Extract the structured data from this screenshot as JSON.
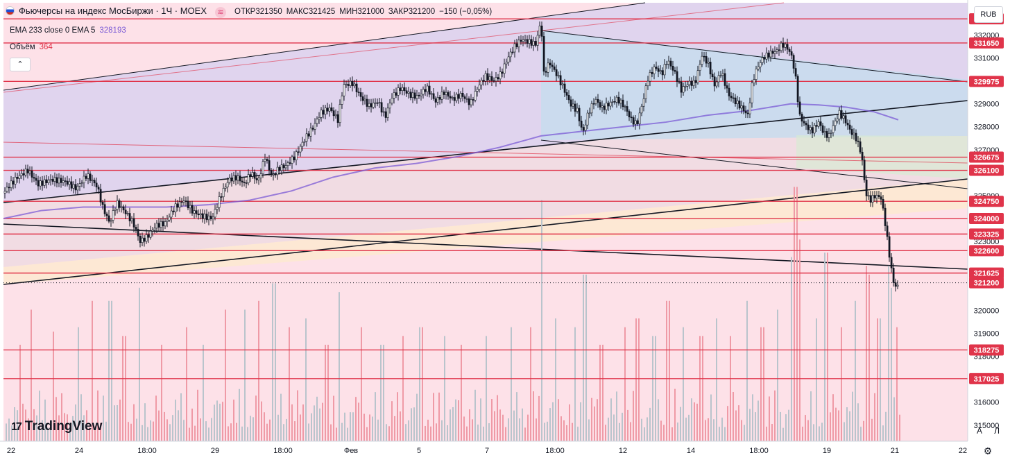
{
  "header": {
    "symbol": "Фьючерсы на индекс МосБиржи · 1Ч · MOEX",
    "indicator_glyph": "≋",
    "ohlc": [
      {
        "label": "ОТКР",
        "value": "321350"
      },
      {
        "label": "МАКС",
        "value": "321425"
      },
      {
        "label": "МИН",
        "value": "321000"
      },
      {
        "label": "ЗАКР",
        "value": "321200"
      }
    ],
    "change": "−150 (−0,05%)"
  },
  "indicators": [
    {
      "label": "EMA 233 close 0 EMA 5",
      "value": "328193"
    },
    {
      "label": "Объём",
      "value": "364"
    }
  ],
  "currency": "RUB",
  "brand": "TradingView",
  "brand_mark": "17",
  "scale_buttons": {
    "auto": "A",
    "log": "Л"
  },
  "colors": {
    "up": "#26a69a",
    "candle": "#131722",
    "hline": "#e0344a",
    "ema": "#7b5bd6",
    "vol_up": "#b9c4cc",
    "vol_down": "#ef9aa6",
    "bg_pink": "#fde1e8",
    "bg_purple": "#ddd3ee"
  },
  "chart_data": {
    "type": "candlestick",
    "y_axis_ticks": [
      332000,
      331000,
      329000,
      328000,
      327000,
      325000,
      323000,
      320000,
      319000,
      318000,
      316000,
      315000
    ],
    "ylim": [
      314300,
      333400
    ],
    "x_axis_ticks": [
      "22",
      "24",
      "18:00",
      "29",
      "18:00",
      "Фев",
      "5",
      "7",
      "18:00",
      "12",
      "14",
      "18:00",
      "19",
      "21",
      "22"
    ],
    "price_levels": [
      {
        "label": "332700",
        "value": 332700
      },
      {
        "label": "331650",
        "value": 331650
      },
      {
        "label": "329975",
        "value": 329975
      },
      {
        "label": "326675",
        "value": 326675
      },
      {
        "label": "326100",
        "value": 326100
      },
      {
        "label": "324750",
        "value": 324750
      },
      {
        "label": "324000",
        "value": 324000
      },
      {
        "label": "323325",
        "value": 323325
      },
      {
        "label": "322600",
        "value": 322600
      },
      {
        "label": "321625",
        "value": 321625
      },
      {
        "label": "321200",
        "value": 321200
      },
      {
        "label": "318275",
        "value": 318275
      },
      {
        "label": "317025",
        "value": 317025
      }
    ],
    "last_price": 321200,
    "price_path": [
      [
        0,
        324900
      ],
      [
        12,
        325400
      ],
      [
        25,
        325800
      ],
      [
        40,
        326100
      ],
      [
        55,
        325500
      ],
      [
        75,
        325700
      ],
      [
        95,
        325600
      ],
      [
        110,
        325300
      ],
      [
        125,
        325900
      ],
      [
        140,
        325400
      ],
      [
        148,
        324500
      ],
      [
        158,
        323800
      ],
      [
        168,
        324700
      ],
      [
        180,
        324300
      ],
      [
        192,
        323800
      ],
      [
        202,
        323000
      ],
      [
        212,
        323200
      ],
      [
        225,
        323700
      ],
      [
        238,
        323800
      ],
      [
        252,
        324500
      ],
      [
        265,
        324800
      ],
      [
        278,
        324300
      ],
      [
        292,
        324100
      ],
      [
        306,
        324000
      ],
      [
        318,
        325000
      ],
      [
        330,
        325700
      ],
      [
        342,
        325800
      ],
      [
        352,
        325500
      ],
      [
        362,
        326000
      ],
      [
        372,
        325600
      ],
      [
        382,
        326700
      ],
      [
        392,
        325800
      ],
      [
        402,
        326200
      ],
      [
        412,
        326300
      ],
      [
        425,
        326700
      ],
      [
        440,
        327500
      ],
      [
        452,
        328000
      ],
      [
        462,
        328600
      ],
      [
        475,
        328800
      ],
      [
        487,
        328300
      ],
      [
        495,
        329800
      ],
      [
        508,
        329900
      ],
      [
        520,
        329300
      ],
      [
        532,
        328900
      ],
      [
        545,
        329100
      ],
      [
        555,
        328400
      ],
      [
        565,
        329300
      ],
      [
        578,
        329700
      ],
      [
        590,
        329400
      ],
      [
        602,
        329300
      ],
      [
        615,
        329700
      ],
      [
        628,
        329100
      ],
      [
        640,
        329500
      ],
      [
        652,
        329200
      ],
      [
        665,
        329400
      ],
      [
        678,
        329000
      ],
      [
        690,
        329800
      ],
      [
        700,
        330200
      ],
      [
        712,
        330000
      ],
      [
        722,
        330300
      ],
      [
        732,
        331000
      ],
      [
        742,
        331500
      ],
      [
        752,
        331800
      ],
      [
        762,
        331700
      ],
      [
        772,
        331600
      ],
      [
        780,
        332600
      ],
      [
        784,
        330300
      ],
      [
        792,
        330800
      ],
      [
        802,
        330300
      ],
      [
        812,
        329700
      ],
      [
        822,
        329000
      ],
      [
        832,
        328700
      ],
      [
        840,
        327700
      ],
      [
        848,
        328600
      ],
      [
        858,
        329200
      ],
      [
        868,
        328800
      ],
      [
        878,
        329000
      ],
      [
        890,
        329200
      ],
      [
        900,
        328900
      ],
      [
        910,
        328300
      ],
      [
        918,
        328100
      ],
      [
        926,
        329000
      ],
      [
        934,
        330100
      ],
      [
        944,
        330600
      ],
      [
        954,
        330300
      ],
      [
        962,
        330900
      ],
      [
        972,
        330400
      ],
      [
        982,
        329600
      ],
      [
        992,
        329900
      ],
      [
        1002,
        329900
      ],
      [
        1012,
        331100
      ],
      [
        1020,
        330800
      ],
      [
        1030,
        329800
      ],
      [
        1040,
        330400
      ],
      [
        1050,
        329400
      ],
      [
        1060,
        329100
      ],
      [
        1070,
        328800
      ],
      [
        1078,
        328500
      ],
      [
        1085,
        330000
      ],
      [
        1092,
        330600
      ],
      [
        1100,
        331000
      ],
      [
        1110,
        331200
      ],
      [
        1120,
        331300
      ],
      [
        1128,
        331600
      ],
      [
        1136,
        331400
      ],
      [
        1142,
        331000
      ],
      [
        1148,
        329900
      ],
      [
        1152,
        328500
      ],
      [
        1160,
        328100
      ],
      [
        1170,
        327800
      ],
      [
        1180,
        328200
      ],
      [
        1188,
        327700
      ],
      [
        1195,
        327600
      ],
      [
        1202,
        328100
      ],
      [
        1210,
        328600
      ],
      [
        1218,
        328300
      ],
      [
        1226,
        327800
      ],
      [
        1234,
        327500
      ],
      [
        1242,
        326800
      ],
      [
        1248,
        325100
      ],
      [
        1254,
        324800
      ],
      [
        1262,
        325000
      ],
      [
        1270,
        324900
      ],
      [
        1276,
        323800
      ],
      [
        1282,
        322400
      ],
      [
        1288,
        321200
      ],
      [
        1294,
        321000
      ],
      [
        1298,
        321200
      ]
    ],
    "ema_path": [
      [
        5,
        324000
      ],
      [
        60,
        324350
      ],
      [
        120,
        324500
      ],
      [
        180,
        324500
      ],
      [
        240,
        324500
      ],
      [
        300,
        324600
      ],
      [
        360,
        324800
      ],
      [
        420,
        325200
      ],
      [
        480,
        325800
      ],
      [
        540,
        326200
      ],
      [
        600,
        326400
      ],
      [
        660,
        326700
      ],
      [
        720,
        327100
      ],
      [
        780,
        327600
      ],
      [
        840,
        327800
      ],
      [
        900,
        328000
      ],
      [
        960,
        328200
      ],
      [
        1020,
        328500
      ],
      [
        1080,
        328700
      ],
      [
        1140,
        329000
      ],
      [
        1180,
        328950
      ],
      [
        1220,
        328850
      ],
      [
        1260,
        328650
      ],
      [
        1295,
        328300
      ]
    ],
    "volume_spikes": [
      [
        28,
        0.22
      ],
      [
        45,
        0.3
      ],
      [
        75,
        0.25
      ],
      [
        112,
        0.26
      ],
      [
        131,
        0.32
      ],
      [
        158,
        0.32
      ],
      [
        178,
        0.24
      ],
      [
        200,
        0.35
      ],
      [
        232,
        0.22
      ],
      [
        268,
        0.26
      ],
      [
        292,
        0.22
      ],
      [
        325,
        0.3
      ],
      [
        352,
        0.3
      ],
      [
        371,
        0.32
      ],
      [
        394,
        0.36
      ],
      [
        416,
        0.26
      ],
      [
        440,
        0.28
      ],
      [
        470,
        0.22
      ],
      [
        488,
        0.34
      ],
      [
        520,
        0.26
      ],
      [
        550,
        0.22
      ],
      [
        580,
        0.24
      ],
      [
        606,
        0.26
      ],
      [
        640,
        0.24
      ],
      [
        664,
        0.22
      ],
      [
        700,
        0.24
      ],
      [
        736,
        0.26
      ],
      [
        764,
        0.26
      ],
      [
        781,
        0.55
      ],
      [
        800,
        0.28
      ],
      [
        827,
        0.26
      ],
      [
        842,
        0.38
      ],
      [
        866,
        0.22
      ],
      [
        899,
        0.26
      ],
      [
        918,
        0.28
      ],
      [
        942,
        0.24
      ],
      [
        962,
        0.32
      ],
      [
        985,
        0.26
      ],
      [
        1010,
        0.24
      ],
      [
        1033,
        0.28
      ],
      [
        1052,
        0.24
      ],
      [
        1075,
        0.32
      ],
      [
        1098,
        0.26
      ],
      [
        1120,
        0.3
      ],
      [
        1140,
        0.42
      ],
      [
        1146,
        0.58
      ],
      [
        1152,
        0.46
      ],
      [
        1175,
        0.28
      ],
      [
        1190,
        0.43
      ],
      [
        1212,
        0.26
      ],
      [
        1232,
        0.32
      ],
      [
        1247,
        0.4
      ],
      [
        1253,
        0.38
      ],
      [
        1266,
        0.28
      ],
      [
        1279,
        0.4
      ],
      [
        1285,
        0.35
      ],
      [
        1292,
        0.26
      ]
    ]
  }
}
